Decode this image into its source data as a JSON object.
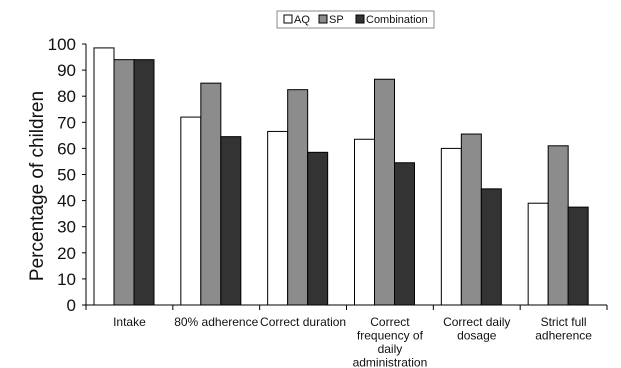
{
  "chart_data": {
    "type": "bar",
    "title": "",
    "xlabel": "",
    "ylabel": "Percentage of children",
    "ylim": [
      0,
      100
    ],
    "yticks": [
      0,
      10,
      20,
      30,
      40,
      50,
      60,
      70,
      80,
      90,
      100
    ],
    "grid": false,
    "legend_position": "top-center",
    "categories": [
      [
        "Intake"
      ],
      [
        "80% adherence"
      ],
      [
        "Correct duration"
      ],
      [
        "Correct",
        "frequency of",
        "daily",
        "administration"
      ],
      [
        "Correct daily",
        "dosage"
      ],
      [
        "Strict full",
        "adherence"
      ]
    ],
    "series": [
      {
        "name": "AQ",
        "color": "#ffffff",
        "values": [
          98.5,
          72,
          66.5,
          63.5,
          60,
          39
        ]
      },
      {
        "name": "SP",
        "color": "#8c8c8c",
        "values": [
          94,
          85,
          82.5,
          86.5,
          65.5,
          61
        ]
      },
      {
        "name": "Combination",
        "color": "#333333",
        "values": [
          94,
          64.5,
          58.5,
          54.5,
          44.5,
          37.5
        ]
      }
    ]
  }
}
